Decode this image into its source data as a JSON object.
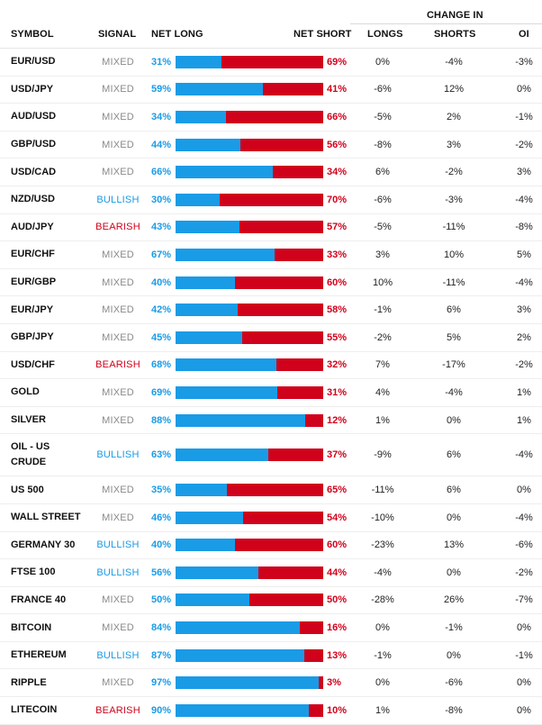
{
  "header": {
    "symbol": "SYMBOL",
    "signal": "SIGNAL",
    "net_long": "NET LONG",
    "net_short": "NET SHORT",
    "change_in": "CHANGE IN",
    "longs": "LONGS",
    "shorts": "SHORTS",
    "oi": "OI"
  },
  "colors": {
    "long_blue": "#1a9be6",
    "short_red": "#d0021b",
    "mixed_gray": "#8a8a8a"
  },
  "rows": [
    {
      "symbol": "EUR/USD",
      "signal": "MIXED",
      "net_long": "31%",
      "net_short": "69%",
      "long_pct": 31,
      "longs": "0%",
      "shorts": "-4%",
      "oi": "-3%"
    },
    {
      "symbol": "USD/JPY",
      "signal": "MIXED",
      "net_long": "59%",
      "net_short": "41%",
      "long_pct": 59,
      "longs": "-6%",
      "shorts": "12%",
      "oi": "0%"
    },
    {
      "symbol": "AUD/USD",
      "signal": "MIXED",
      "net_long": "34%",
      "net_short": "66%",
      "long_pct": 34,
      "longs": "-5%",
      "shorts": "2%",
      "oi": "-1%"
    },
    {
      "symbol": "GBP/USD",
      "signal": "MIXED",
      "net_long": "44%",
      "net_short": "56%",
      "long_pct": 44,
      "longs": "-8%",
      "shorts": "3%",
      "oi": "-2%"
    },
    {
      "symbol": "USD/CAD",
      "signal": "MIXED",
      "net_long": "66%",
      "net_short": "34%",
      "long_pct": 66,
      "longs": "6%",
      "shorts": "-2%",
      "oi": "3%"
    },
    {
      "symbol": "NZD/USD",
      "signal": "BULLISH",
      "net_long": "30%",
      "net_short": "70%",
      "long_pct": 30,
      "longs": "-6%",
      "shorts": "-3%",
      "oi": "-4%"
    },
    {
      "symbol": "AUD/JPY",
      "signal": "BEARISH",
      "net_long": "43%",
      "net_short": "57%",
      "long_pct": 43,
      "longs": "-5%",
      "shorts": "-11%",
      "oi": "-8%"
    },
    {
      "symbol": "EUR/CHF",
      "signal": "MIXED",
      "net_long": "67%",
      "net_short": "33%",
      "long_pct": 67,
      "longs": "3%",
      "shorts": "10%",
      "oi": "5%"
    },
    {
      "symbol": "EUR/GBP",
      "signal": "MIXED",
      "net_long": "40%",
      "net_short": "60%",
      "long_pct": 40,
      "longs": "10%",
      "shorts": "-11%",
      "oi": "-4%"
    },
    {
      "symbol": "EUR/JPY",
      "signal": "MIXED",
      "net_long": "42%",
      "net_short": "58%",
      "long_pct": 42,
      "longs": "-1%",
      "shorts": "6%",
      "oi": "3%"
    },
    {
      "symbol": "GBP/JPY",
      "signal": "MIXED",
      "net_long": "45%",
      "net_short": "55%",
      "long_pct": 45,
      "longs": "-2%",
      "shorts": "5%",
      "oi": "2%"
    },
    {
      "symbol": "USD/CHF",
      "signal": "BEARISH",
      "net_long": "68%",
      "net_short": "32%",
      "long_pct": 68,
      "longs": "7%",
      "shorts": "-17%",
      "oi": "-2%"
    },
    {
      "symbol": "GOLD",
      "signal": "MIXED",
      "net_long": "69%",
      "net_short": "31%",
      "long_pct": 69,
      "longs": "4%",
      "shorts": "-4%",
      "oi": "1%"
    },
    {
      "symbol": "SILVER",
      "signal": "MIXED",
      "net_long": "88%",
      "net_short": "12%",
      "long_pct": 88,
      "longs": "1%",
      "shorts": "0%",
      "oi": "1%"
    },
    {
      "symbol": "OIL - US CRUDE",
      "signal": "BULLISH",
      "net_long": "63%",
      "net_short": "37%",
      "long_pct": 63,
      "longs": "-9%",
      "shorts": "6%",
      "oi": "-4%"
    },
    {
      "symbol": "US 500",
      "signal": "MIXED",
      "net_long": "35%",
      "net_short": "65%",
      "long_pct": 35,
      "longs": "-11%",
      "shorts": "6%",
      "oi": "0%"
    },
    {
      "symbol": "WALL STREET",
      "signal": "MIXED",
      "net_long": "46%",
      "net_short": "54%",
      "long_pct": 46,
      "longs": "-10%",
      "shorts": "0%",
      "oi": "-4%"
    },
    {
      "symbol": "GERMANY 30",
      "signal": "BULLISH",
      "net_long": "40%",
      "net_short": "60%",
      "long_pct": 40,
      "longs": "-23%",
      "shorts": "13%",
      "oi": "-6%"
    },
    {
      "symbol": "FTSE 100",
      "signal": "BULLISH",
      "net_long": "56%",
      "net_short": "44%",
      "long_pct": 56,
      "longs": "-4%",
      "shorts": "0%",
      "oi": "-2%"
    },
    {
      "symbol": "FRANCE 40",
      "signal": "MIXED",
      "net_long": "50%",
      "net_short": "50%",
      "long_pct": 50,
      "longs": "-28%",
      "shorts": "26%",
      "oi": "-7%"
    },
    {
      "symbol": "BITCOIN",
      "signal": "MIXED",
      "net_long": "84%",
      "net_short": "16%",
      "long_pct": 84,
      "longs": "0%",
      "shorts": "-1%",
      "oi": "0%"
    },
    {
      "symbol": "ETHEREUM",
      "signal": "BULLISH",
      "net_long": "87%",
      "net_short": "13%",
      "long_pct": 87,
      "longs": "-1%",
      "shorts": "0%",
      "oi": "-1%"
    },
    {
      "symbol": "RIPPLE",
      "signal": "MIXED",
      "net_long": "97%",
      "net_short": "3%",
      "long_pct": 97,
      "longs": "0%",
      "shorts": "-6%",
      "oi": "0%"
    },
    {
      "symbol": "LITECOIN",
      "signal": "BEARISH",
      "net_long": "90%",
      "net_short": "10%",
      "long_pct": 90,
      "longs": "1%",
      "shorts": "-8%",
      "oi": "0%"
    }
  ]
}
